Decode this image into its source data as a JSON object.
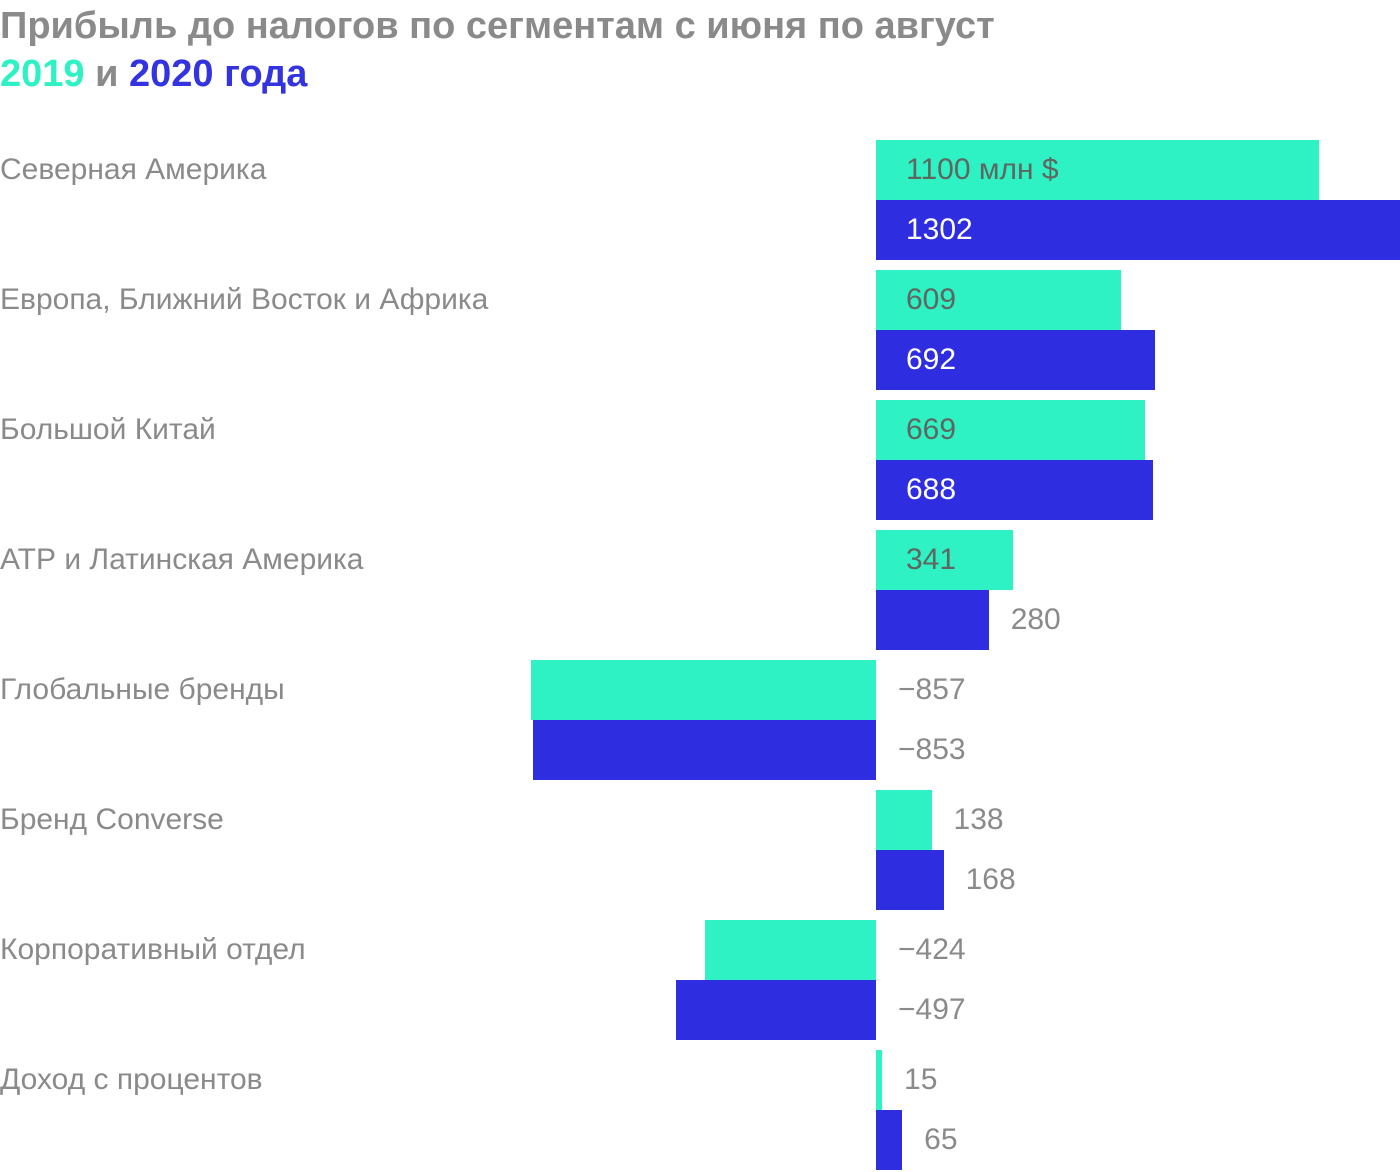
{
  "title": {
    "line1": "Прибыль до налогов по сегментам с июня по август",
    "year1": "2019",
    "joiner": " и ",
    "year2": "2020 года"
  },
  "colors": {
    "s2019": "#2ef2c4",
    "s2020": "#2e2ee0",
    "label_on_2019": "#5f6660",
    "label_on_2020": "#ffffff",
    "label_outside": "#8a8a8a",
    "category": "#8a8a8a"
  },
  "chart_data": {
    "type": "bar",
    "orientation": "horizontal",
    "title": "Прибыль до налогов по сегментам с июня по август 2019 и 2020 года",
    "unit": "млн $",
    "categories": [
      "Северная Америка",
      "Европа, Ближний Восток и Африка",
      "Большой Китай",
      "АТР и Латинская Америка",
      "Глобальные бренды",
      "Бренд Converse",
      "Корпоративный отдел",
      "Доход с процентов"
    ],
    "series": [
      {
        "name": "2019",
        "values": [
          1100,
          609,
          669,
          341,
          -857,
          138,
          -424,
          15
        ],
        "labels": [
          "1100 млн $",
          "609",
          "669",
          "341",
          "−857",
          "138",
          "−424",
          "15"
        ]
      },
      {
        "name": "2020",
        "values": [
          1302,
          692,
          688,
          280,
          -853,
          168,
          -497,
          65
        ],
        "labels": [
          "1302",
          "692",
          "688",
          "280",
          "−853",
          "168",
          "−497",
          "65"
        ]
      }
    ],
    "xlim": [
      -876,
      1302
    ],
    "grid": false,
    "legend": "none"
  }
}
